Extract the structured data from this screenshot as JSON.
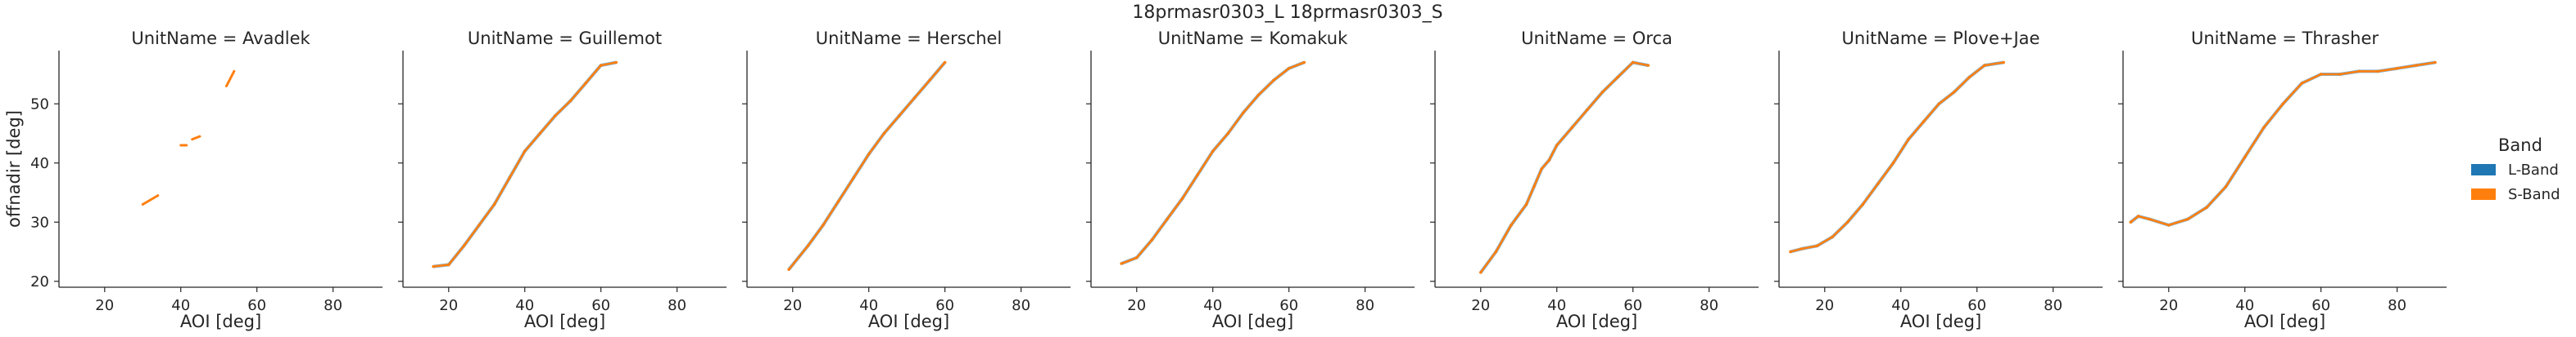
{
  "figure": {
    "title": "18prmasr0303_L 18prmasr0303_S"
  },
  "legend": {
    "title": "Band",
    "entries": [
      {
        "label": "L-Band",
        "color": "#1f77b4"
      },
      {
        "label": "S-Band",
        "color": "#ff7f0e"
      }
    ]
  },
  "chart_data": {
    "type": "scatter",
    "facet_by": "UnitName",
    "xlabel": "AOI [deg]",
    "ylabel": "offnadir [deg]",
    "xlim": [
      8,
      93
    ],
    "ylim": [
      19,
      59
    ],
    "xticks": [
      20,
      40,
      60,
      80
    ],
    "yticks": [
      20,
      30,
      40,
      50
    ],
    "grid": false,
    "legend_position": "right",
    "series": [
      {
        "name": "L-Band",
        "color": "#1f77b4"
      },
      {
        "name": "S-Band",
        "color": "#ff7f0e"
      }
    ],
    "panels": [
      {
        "title": "UnitName = Avadlek",
        "segments": [
          {
            "x": [
              30,
              34
            ],
            "y": [
              33,
              34.5
            ]
          },
          {
            "x": [
              40,
              41.5
            ],
            "y": [
              43,
              43
            ]
          },
          {
            "x": [
              43,
              45
            ],
            "y": [
              44,
              44.5
            ]
          },
          {
            "x": [
              52,
              54
            ],
            "y": [
              53,
              55.5
            ]
          }
        ]
      },
      {
        "title": "UnitName = Guillemot",
        "points": [
          [
            16,
            22.5
          ],
          [
            20,
            22.8
          ],
          [
            24,
            26
          ],
          [
            28,
            29.5
          ],
          [
            32,
            33
          ],
          [
            36,
            37.5
          ],
          [
            40,
            42
          ],
          [
            44,
            45
          ],
          [
            48,
            48
          ],
          [
            52,
            50.5
          ],
          [
            56,
            53.5
          ],
          [
            60,
            56.5
          ],
          [
            64,
            57
          ]
        ]
      },
      {
        "title": "UnitName = Herschel",
        "points": [
          [
            19,
            22
          ],
          [
            24,
            26
          ],
          [
            28,
            29.5
          ],
          [
            32,
            33.5
          ],
          [
            36,
            37.5
          ],
          [
            40,
            41.5
          ],
          [
            44,
            45
          ],
          [
            48,
            48
          ],
          [
            52,
            51
          ],
          [
            56,
            54
          ],
          [
            60,
            57
          ]
        ]
      },
      {
        "title": "UnitName = Komakuk",
        "points": [
          [
            16,
            23
          ],
          [
            20,
            24
          ],
          [
            24,
            27
          ],
          [
            28,
            30.5
          ],
          [
            32,
            34
          ],
          [
            36,
            38
          ],
          [
            40,
            42
          ],
          [
            44,
            45
          ],
          [
            48,
            48.5
          ],
          [
            52,
            51.5
          ],
          [
            56,
            54
          ],
          [
            60,
            56
          ],
          [
            64,
            57
          ]
        ]
      },
      {
        "title": "UnitName = Orca",
        "points": [
          [
            20,
            21.5
          ],
          [
            24,
            25
          ],
          [
            28,
            29.5
          ],
          [
            32,
            33
          ],
          [
            34,
            36
          ],
          [
            36,
            39
          ],
          [
            38,
            40.5
          ],
          [
            40,
            43
          ],
          [
            44,
            46
          ],
          [
            48,
            49
          ],
          [
            52,
            52
          ],
          [
            56,
            54.5
          ],
          [
            60,
            57
          ],
          [
            64,
            56.5
          ]
        ]
      },
      {
        "title": "UnitName = Plove+Jae",
        "points": [
          [
            11,
            25
          ],
          [
            14,
            25.5
          ],
          [
            18,
            26
          ],
          [
            22,
            27.5
          ],
          [
            26,
            30
          ],
          [
            30,
            33
          ],
          [
            34,
            36.5
          ],
          [
            38,
            40
          ],
          [
            42,
            44
          ],
          [
            46,
            47
          ],
          [
            50,
            50
          ],
          [
            54,
            52
          ],
          [
            58,
            54.5
          ],
          [
            62,
            56.5
          ],
          [
            67,
            57
          ]
        ]
      },
      {
        "title": "UnitName = Thrasher",
        "points": [
          [
            10,
            30
          ],
          [
            12,
            31
          ],
          [
            15,
            30.5
          ],
          [
            20,
            29.5
          ],
          [
            25,
            30.5
          ],
          [
            30,
            32.5
          ],
          [
            35,
            36
          ],
          [
            40,
            41
          ],
          [
            45,
            46
          ],
          [
            50,
            50
          ],
          [
            55,
            53.5
          ],
          [
            60,
            55
          ],
          [
            65,
            55
          ],
          [
            70,
            55.5
          ],
          [
            75,
            55.5
          ],
          [
            80,
            56
          ],
          [
            85,
            56.5
          ],
          [
            90,
            57
          ]
        ]
      }
    ]
  }
}
